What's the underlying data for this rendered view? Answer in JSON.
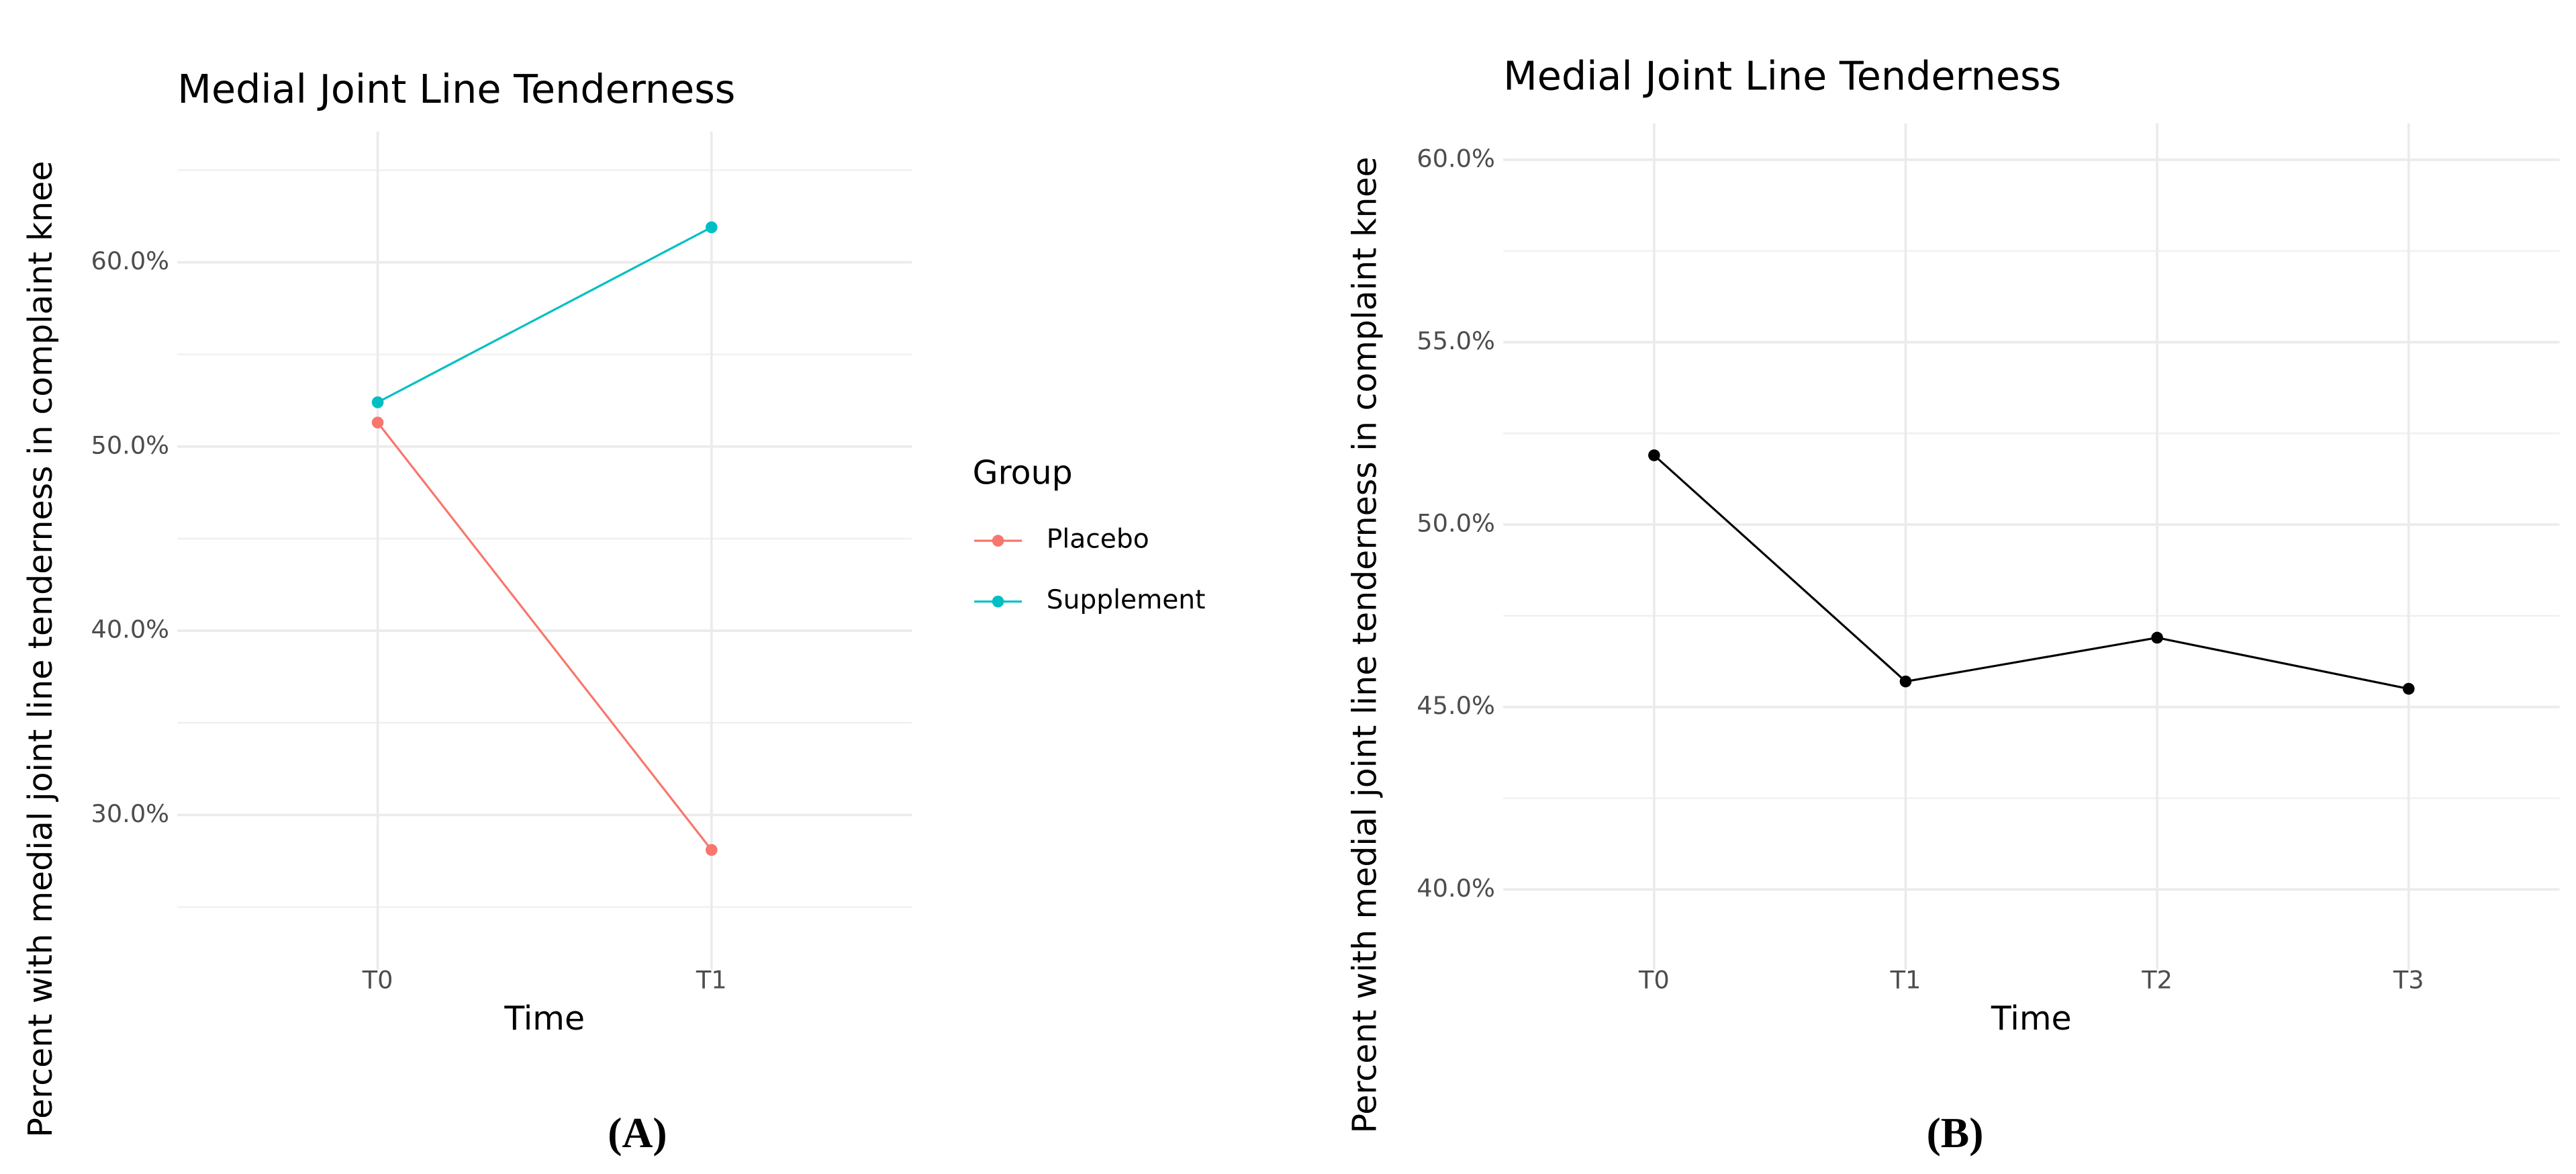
{
  "chart_data": [
    {
      "type": "line",
      "title": "Medial Joint Line Tenderness",
      "x_label": "Time",
      "y_label": "Percent with medial joint line tenderness in complaint knee",
      "panel_label": "(A)",
      "categories": [
        "T0",
        "T1"
      ],
      "series": [
        {
          "name": "Placebo",
          "color": "#F8766D",
          "values": [
            51.3,
            28.1
          ]
        },
        {
          "name": "Supplement",
          "color": "#00BFC4",
          "values": [
            52.4,
            61.9
          ]
        }
      ],
      "legend_title": "Group",
      "legend": "right",
      "ylim": [
        21.6,
        67.1
      ],
      "yticks": [
        {
          "value": 30,
          "label": "30.0%"
        },
        {
          "value": 40,
          "label": "40.0%"
        },
        {
          "value": 50,
          "label": "50.0%"
        },
        {
          "value": 60,
          "label": "60.0%"
        }
      ],
      "minor_yticks": [
        25,
        35,
        45,
        55,
        65
      ],
      "grid": true
    },
    {
      "type": "line",
      "title": "Medial Joint Line Tenderness",
      "x_label": "Time",
      "y_label": "Percent with medial joint line tenderness in complaint knee",
      "panel_label": "(B)",
      "categories": [
        "T0",
        "T1",
        "T2",
        "T3"
      ],
      "values": [
        51.9,
        45.7,
        46.9,
        45.5
      ],
      "color": "#000000",
      "ylim": [
        37.8,
        61.0
      ],
      "yticks": [
        {
          "value": 40,
          "label": "40.0%"
        },
        {
          "value": 45,
          "label": "45.0%"
        },
        {
          "value": 50,
          "label": "50.0%"
        },
        {
          "value": 55,
          "label": "55.0%"
        },
        {
          "value": 60,
          "label": "60.0%"
        }
      ],
      "minor_yticks": [
        42.5,
        47.5,
        52.5,
        57.5
      ],
      "grid": true
    }
  ]
}
